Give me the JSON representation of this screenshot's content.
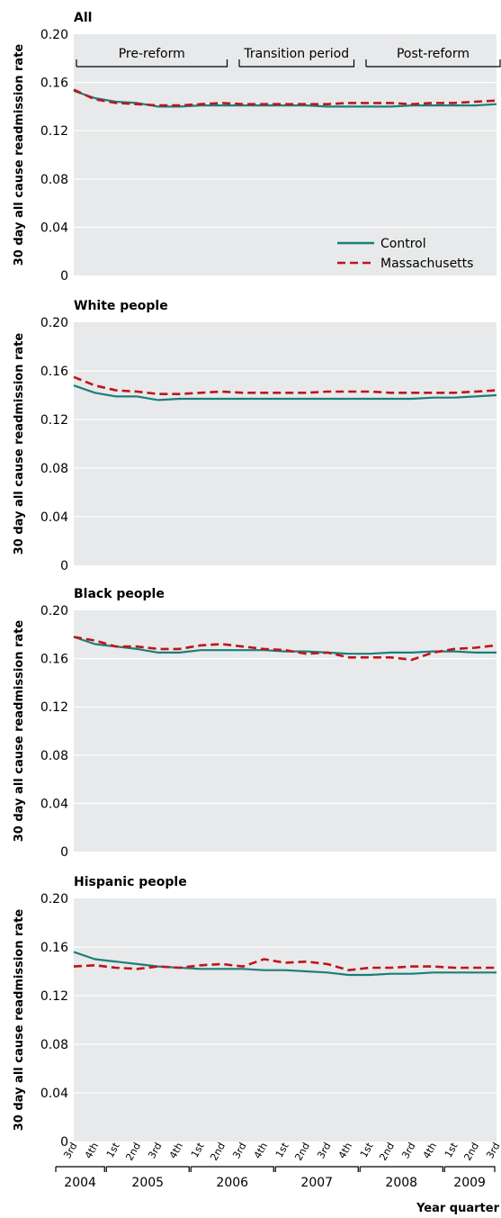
{
  "chart_data": [
    {
      "type": "line",
      "title": "All",
      "ylabel": "30 day all cause readmission rate",
      "ylim": [
        0,
        0.2
      ],
      "yticks": [
        "0",
        "0.04",
        "0.08",
        "0.12",
        "0.16",
        "0.20"
      ],
      "periods": [
        {
          "label": "Pre-reform",
          "from": 0,
          "to": 7
        },
        {
          "label": "Transition period",
          "from": 8,
          "to": 13
        },
        {
          "label": "Post-reform",
          "from": 14,
          "to": 20
        }
      ],
      "legend": {
        "placement": "bottom-right",
        "entries": [
          "Control",
          "Massachusetts"
        ]
      },
      "series": [
        {
          "name": "Control",
          "color": "#1a7f7a",
          "dash": "solid",
          "values": [
            0.153,
            0.147,
            0.144,
            0.143,
            0.14,
            0.14,
            0.141,
            0.141,
            0.141,
            0.141,
            0.141,
            0.141,
            0.14,
            0.14,
            0.14,
            0.14,
            0.141,
            0.141,
            0.141,
            0.141,
            0.142
          ]
        },
        {
          "name": "Massachusetts",
          "color": "#c0141c",
          "dash": "dashed",
          "values": [
            0.154,
            0.146,
            0.143,
            0.142,
            0.141,
            0.141,
            0.142,
            0.143,
            0.142,
            0.142,
            0.142,
            0.142,
            0.142,
            0.143,
            0.143,
            0.143,
            0.142,
            0.143,
            0.143,
            0.144,
            0.145
          ]
        }
      ]
    },
    {
      "type": "line",
      "title": "White people",
      "ylabel": "30 day all cause readmission rate",
      "ylim": [
        0,
        0.2
      ],
      "yticks": [
        "0",
        "0.04",
        "0.08",
        "0.12",
        "0.16",
        "0.20"
      ],
      "series": [
        {
          "name": "Control",
          "color": "#1a7f7a",
          "dash": "solid",
          "values": [
            0.148,
            0.142,
            0.139,
            0.139,
            0.136,
            0.137,
            0.137,
            0.137,
            0.137,
            0.137,
            0.137,
            0.137,
            0.137,
            0.137,
            0.137,
            0.137,
            0.137,
            0.138,
            0.138,
            0.139,
            0.14
          ]
        },
        {
          "name": "Massachusetts",
          "color": "#c0141c",
          "dash": "dashed",
          "values": [
            0.155,
            0.148,
            0.144,
            0.143,
            0.141,
            0.141,
            0.142,
            0.143,
            0.142,
            0.142,
            0.142,
            0.142,
            0.143,
            0.143,
            0.143,
            0.142,
            0.142,
            0.142,
            0.142,
            0.143,
            0.144
          ]
        }
      ]
    },
    {
      "type": "line",
      "title": "Black people",
      "ylabel": "30 day all cause readmission rate",
      "ylim": [
        0,
        0.2
      ],
      "yticks": [
        "0",
        "0.04",
        "0.08",
        "0.12",
        "0.16",
        "0.20"
      ],
      "series": [
        {
          "name": "Control",
          "color": "#1a7f7a",
          "dash": "solid",
          "values": [
            0.178,
            0.172,
            0.17,
            0.168,
            0.165,
            0.165,
            0.167,
            0.167,
            0.167,
            0.167,
            0.166,
            0.166,
            0.165,
            0.164,
            0.164,
            0.165,
            0.165,
            0.166,
            0.166,
            0.165,
            0.165
          ]
        },
        {
          "name": "Massachusetts",
          "color": "#c0141c",
          "dash": "dashed",
          "values": [
            0.178,
            0.175,
            0.17,
            0.17,
            0.168,
            0.168,
            0.171,
            0.172,
            0.17,
            0.168,
            0.167,
            0.164,
            0.165,
            0.161,
            0.161,
            0.161,
            0.159,
            0.165,
            0.168,
            0.169,
            0.171
          ]
        }
      ]
    },
    {
      "type": "line",
      "title": "Hispanic people",
      "ylabel": "30 day all cause readmission rate",
      "ylim": [
        0,
        0.2
      ],
      "yticks": [
        "0",
        "0.04",
        "0.08",
        "0.12",
        "0.16",
        "0.20"
      ],
      "series": [
        {
          "name": "Control",
          "color": "#1a7f7a",
          "dash": "solid",
          "values": [
            0.156,
            0.15,
            0.148,
            0.146,
            0.144,
            0.143,
            0.142,
            0.142,
            0.142,
            0.141,
            0.141,
            0.14,
            0.139,
            0.137,
            0.137,
            0.138,
            0.138,
            0.139,
            0.139,
            0.139,
            0.139
          ]
        },
        {
          "name": "Massachusetts",
          "color": "#c0141c",
          "dash": "dashed",
          "values": [
            0.144,
            0.145,
            0.143,
            0.142,
            0.144,
            0.143,
            0.145,
            0.146,
            0.144,
            0.15,
            0.147,
            0.148,
            0.146,
            0.141,
            0.143,
            0.143,
            0.144,
            0.144,
            0.143,
            0.143,
            0.143
          ]
        }
      ]
    }
  ],
  "x_axis": {
    "xlabel": "Year quarter",
    "quarters": [
      "3rd",
      "4th",
      "1st",
      "2nd",
      "3rd",
      "4th",
      "1st",
      "2nd",
      "3rd",
      "4th",
      "1st",
      "2nd",
      "3rd",
      "4th",
      "1st",
      "2nd",
      "3rd",
      "4th",
      "1st",
      "2nd",
      "3rd"
    ],
    "years": [
      {
        "label": "2004",
        "from": 0,
        "to": 1
      },
      {
        "label": "2005",
        "from": 2,
        "to": 5
      },
      {
        "label": "2006",
        "from": 6,
        "to": 9
      },
      {
        "label": "2007",
        "from": 10,
        "to": 13
      },
      {
        "label": "2008",
        "from": 14,
        "to": 17
      },
      {
        "label": "2009",
        "from": 18,
        "to": 20
      }
    ]
  }
}
